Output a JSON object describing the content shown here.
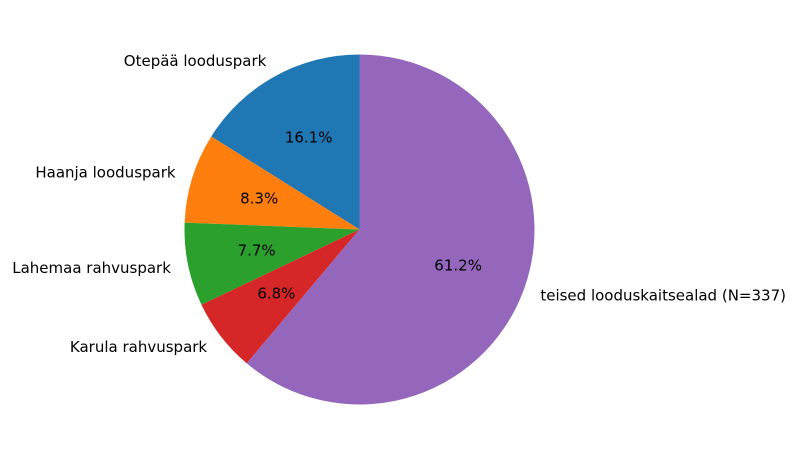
{
  "chart_data": {
    "type": "pie",
    "categories": [
      "Otepää looduspark",
      "Haanja looduspark",
      "Lahemaa rahvuspark",
      "Karula rahvuspark",
      "teised looduskaitsealad (N=337)"
    ],
    "values": [
      16.1,
      8.3,
      7.7,
      6.8,
      61.2
    ],
    "value_labels": [
      "16.1%",
      "8.3%",
      "7.7%",
      "6.8%",
      "61.2%"
    ],
    "colors": [
      "#1f77b4",
      "#ff7f0e",
      "#2ca02c",
      "#d62728",
      "#9467bd"
    ],
    "start_angle_deg": 90,
    "direction": "counterclockwise",
    "legend": "none",
    "title": ""
  }
}
